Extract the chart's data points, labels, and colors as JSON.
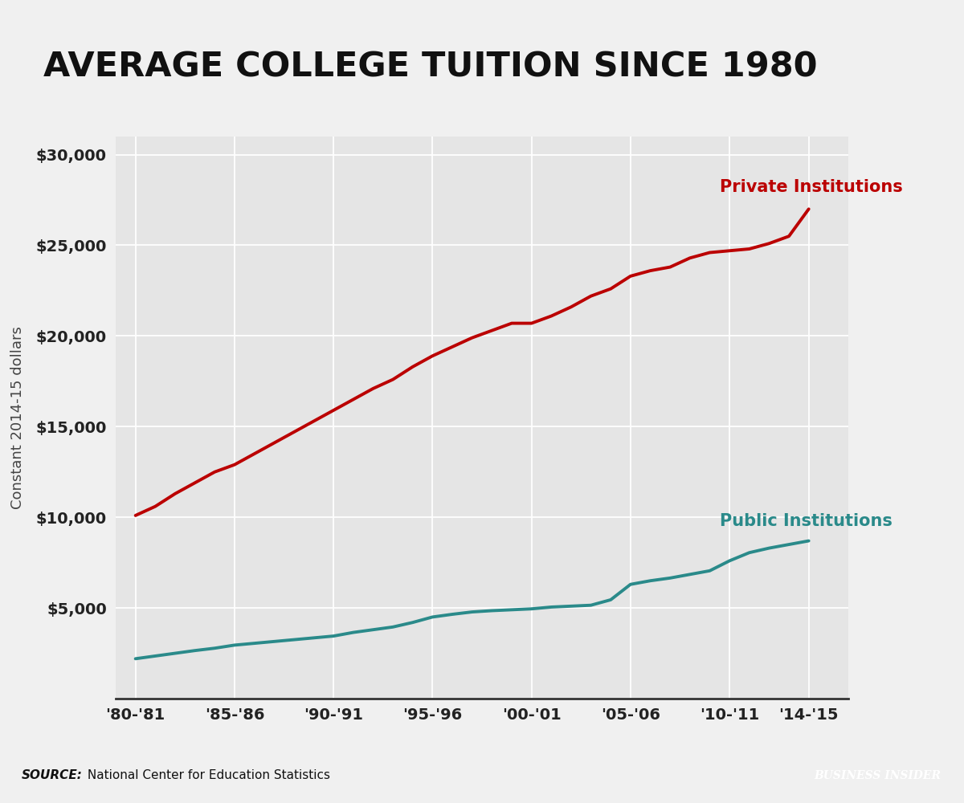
{
  "title": "AVERAGE COLLEGE TUITION SINCE 1980",
  "ylabel": "Constant 2014-15 dollars",
  "source_label_bold": "SOURCE:",
  "source_label_normal": " National Center for Education Statistics",
  "bi_text": "BUSINESS INSIDER",
  "background_color": "#f0f0f0",
  "plot_background_color": "#e5e5e5",
  "private_color": "#bb0000",
  "public_color": "#2a8a8a",
  "private_label": "Private Institutions",
  "public_label": "Public Institutions",
  "x_labels": [
    "'80-'81",
    "'85-'86",
    "'90-'91",
    "'95-'96",
    "'00-'01",
    "'05-'06",
    "'10-'11",
    "'14-'15"
  ],
  "x_positions": [
    1980,
    1985,
    1990,
    1995,
    2000,
    2005,
    2010,
    2014
  ],
  "private_data": [
    [
      1980,
      10100
    ],
    [
      1981,
      10600
    ],
    [
      1982,
      11300
    ],
    [
      1983,
      11900
    ],
    [
      1984,
      12500
    ],
    [
      1985,
      12900
    ],
    [
      1986,
      13500
    ],
    [
      1987,
      14100
    ],
    [
      1988,
      14700
    ],
    [
      1989,
      15300
    ],
    [
      1990,
      15900
    ],
    [
      1991,
      16500
    ],
    [
      1992,
      17100
    ],
    [
      1993,
      17600
    ],
    [
      1994,
      18300
    ],
    [
      1995,
      18900
    ],
    [
      1996,
      19400
    ],
    [
      1997,
      19900
    ],
    [
      1998,
      20300
    ],
    [
      1999,
      20700
    ],
    [
      2000,
      20700
    ],
    [
      2001,
      21100
    ],
    [
      2002,
      21600
    ],
    [
      2003,
      22200
    ],
    [
      2004,
      22600
    ],
    [
      2005,
      23300
    ],
    [
      2006,
      23600
    ],
    [
      2007,
      23800
    ],
    [
      2008,
      24300
    ],
    [
      2009,
      24600
    ],
    [
      2010,
      24700
    ],
    [
      2011,
      24800
    ],
    [
      2012,
      25100
    ],
    [
      2013,
      25500
    ],
    [
      2014,
      27000
    ]
  ],
  "public_data": [
    [
      1980,
      2200
    ],
    [
      1981,
      2350
    ],
    [
      1982,
      2500
    ],
    [
      1983,
      2650
    ],
    [
      1984,
      2780
    ],
    [
      1985,
      2950
    ],
    [
      1986,
      3050
    ],
    [
      1987,
      3150
    ],
    [
      1988,
      3250
    ],
    [
      1989,
      3350
    ],
    [
      1990,
      3450
    ],
    [
      1991,
      3650
    ],
    [
      1992,
      3800
    ],
    [
      1993,
      3950
    ],
    [
      1994,
      4200
    ],
    [
      1995,
      4500
    ],
    [
      1996,
      4650
    ],
    [
      1997,
      4780
    ],
    [
      1998,
      4850
    ],
    [
      1999,
      4900
    ],
    [
      2000,
      4950
    ],
    [
      2001,
      5050
    ],
    [
      2002,
      5100
    ],
    [
      2003,
      5150
    ],
    [
      2004,
      5450
    ],
    [
      2005,
      6300
    ],
    [
      2006,
      6500
    ],
    [
      2007,
      6650
    ],
    [
      2008,
      6850
    ],
    [
      2009,
      7050
    ],
    [
      2010,
      7600
    ],
    [
      2011,
      8050
    ],
    [
      2012,
      8300
    ],
    [
      2013,
      8500
    ],
    [
      2014,
      8700
    ]
  ],
  "ylim": [
    0,
    31000
  ],
  "yticks": [
    0,
    5000,
    10000,
    15000,
    20000,
    25000,
    30000
  ],
  "ytick_labels": [
    "",
    "$5,000",
    "$10,000",
    "$15,000",
    "$20,000",
    "$25,000",
    "$30,000"
  ],
  "line_width": 2.8,
  "footer_color": "#cccccc",
  "bi_box_color": "#2c5f6b"
}
